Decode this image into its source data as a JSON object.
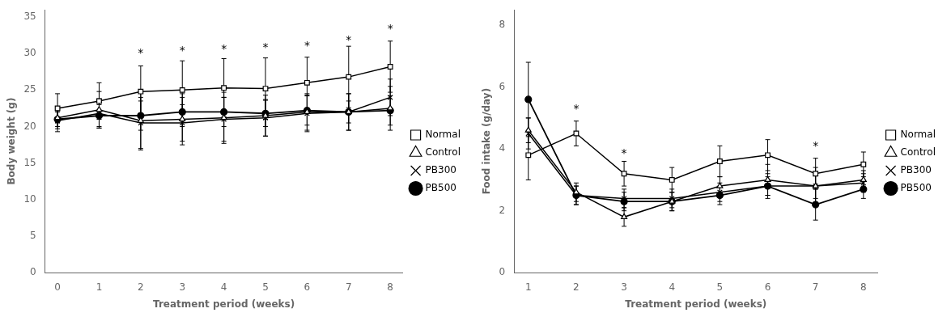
{
  "chart_data": [
    {
      "type": "line",
      "x_label": "Treatment period (weeks)",
      "y_label": "Body weight (g)",
      "x": [
        0,
        1,
        2,
        3,
        4,
        5,
        6,
        7,
        8
      ],
      "series": [
        {
          "name": "Normal",
          "color": "#000000",
          "marker": "square",
          "values": [
            22.5,
            23.5,
            24.8,
            25.0,
            25.3,
            25.2,
            26.0,
            26.8,
            28.2
          ],
          "errors": [
            2.0,
            2.5,
            3.5,
            4.0,
            4.0,
            4.2,
            3.5,
            4.2,
            3.5
          ]
        },
        {
          "name": "Control",
          "color": "#000000",
          "marker": "triangle",
          "values": [
            21.2,
            22.3,
            20.8,
            21.0,
            21.2,
            21.5,
            22.0,
            22.0,
            22.5
          ],
          "errors": [
            1.5,
            2.5,
            4.0,
            3.5,
            3.5,
            2.8,
            2.5,
            2.5,
            3.0
          ]
        },
        {
          "name": "PB300",
          "color": "#000000",
          "marker": "x",
          "values": [
            20.8,
            21.8,
            20.5,
            20.5,
            21.0,
            21.2,
            21.8,
            22.0,
            24.0
          ],
          "errors": [
            1.5,
            2.0,
            3.5,
            2.5,
            3.0,
            2.5,
            2.5,
            2.5,
            2.5
          ]
        },
        {
          "name": "PB500",
          "color": "#000000",
          "marker": "circle",
          "values": [
            21.0,
            21.5,
            21.5,
            22.0,
            22.0,
            21.8,
            22.2,
            22.0,
            22.2
          ],
          "errors": [
            1.0,
            1.5,
            2.0,
            2.0,
            2.0,
            1.8,
            2.0,
            1.5,
            2.0
          ]
        }
      ],
      "annotations": [
        {
          "x": 2,
          "y": 29.2,
          "text": "*"
        },
        {
          "x": 3,
          "y": 29.5,
          "text": "*"
        },
        {
          "x": 4,
          "y": 29.8,
          "text": "*"
        },
        {
          "x": 5,
          "y": 30.0,
          "text": "*"
        },
        {
          "x": 6,
          "y": 30.2,
          "text": "*"
        },
        {
          "x": 7,
          "y": 31.0,
          "text": "*"
        },
        {
          "x": 8,
          "y": 32.5,
          "text": "*"
        }
      ],
      "xlim": [
        -0.3,
        8.3
      ],
      "xticks": [
        0,
        1,
        2,
        3,
        4,
        5,
        6,
        7,
        8
      ],
      "ylim": [
        0,
        36
      ],
      "yticks": [
        0,
        5,
        10,
        15,
        20,
        25,
        30,
        35
      ],
      "grid": false,
      "legend": "right"
    },
    {
      "type": "line",
      "x_label": "Treatment period (weeks)",
      "y_label": "Food intake (g/day)",
      "x": [
        1,
        2,
        3,
        4,
        5,
        6,
        7,
        8
      ],
      "series": [
        {
          "name": "Normal",
          "color": "#000000",
          "marker": "square",
          "values": [
            3.8,
            4.5,
            3.2,
            3.0,
            3.6,
            3.8,
            3.2,
            3.5
          ],
          "errors": [
            0.8,
            0.4,
            0.4,
            0.4,
            0.5,
            0.5,
            0.5,
            0.4
          ]
        },
        {
          "name": "Control",
          "color": "#000000",
          "marker": "triangle",
          "values": [
            4.6,
            2.6,
            1.8,
            2.3,
            2.8,
            3.0,
            2.8,
            3.0
          ],
          "errors": [
            0.4,
            0.3,
            0.3,
            0.3,
            0.3,
            0.5,
            0.6,
            0.3
          ]
        },
        {
          "name": "PB300",
          "color": "#000000",
          "marker": "x",
          "values": [
            4.5,
            2.5,
            2.4,
            2.4,
            2.6,
            2.8,
            2.8,
            2.9
          ],
          "errors": [
            0.5,
            0.3,
            0.3,
            0.3,
            0.3,
            0.3,
            0.4,
            0.3
          ]
        },
        {
          "name": "PB500",
          "color": "#000000",
          "marker": "circle",
          "values": [
            5.6,
            2.5,
            2.3,
            2.3,
            2.5,
            2.8,
            2.2,
            2.7
          ],
          "errors": [
            1.2,
            0.3,
            0.3,
            0.3,
            0.3,
            0.4,
            0.5,
            0.3
          ]
        }
      ],
      "annotations": [
        {
          "x": 2,
          "y": 5.1,
          "text": "*"
        },
        {
          "x": 3,
          "y": 3.65,
          "text": "*"
        },
        {
          "x": 7,
          "y": 3.9,
          "text": "*"
        }
      ],
      "xlim": [
        0.7,
        8.3
      ],
      "xticks": [
        1,
        2,
        3,
        4,
        5,
        6,
        7,
        8
      ],
      "ylim": [
        0,
        8.5
      ],
      "yticks": [
        0,
        2,
        4,
        6,
        8
      ],
      "grid": false,
      "legend": "right"
    }
  ]
}
